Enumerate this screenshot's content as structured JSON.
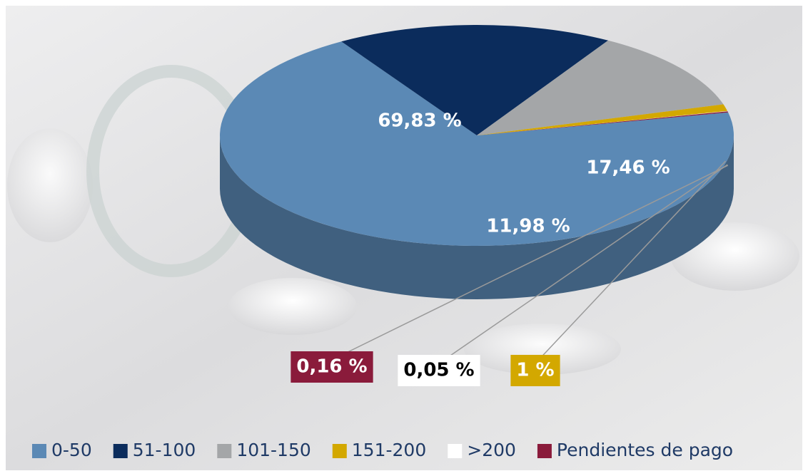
{
  "chart_data": {
    "type": "pie",
    "categories": [
      "0-50",
      "51-100",
      "101-150",
      "151-200",
      ">200",
      "Pendientes de pago"
    ],
    "values": [
      69.83,
      17.46,
      11.98,
      1,
      0.05,
      0.16
    ],
    "value_labels": [
      "69,83 %",
      "17,46 %",
      "11,98 %",
      "1 %",
      "0,05 %",
      "0,16 %"
    ],
    "colors": [
      "#5b89b5",
      "#0b2c5c",
      "#a4a6a8",
      "#d3a800",
      "#ffffff",
      "#8a1b3b"
    ]
  }
}
